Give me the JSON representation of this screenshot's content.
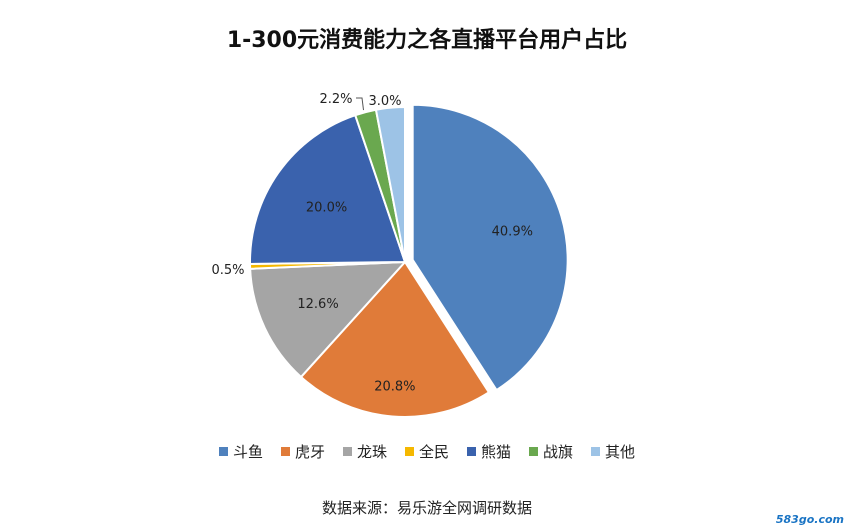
{
  "chart_data": {
    "type": "pie",
    "title": "1-300元消费能力之各直播平台用户占比",
    "categories": [
      "斗鱼",
      "虎牙",
      "龙珠",
      "全民",
      "熊猫",
      "战旗",
      "其他"
    ],
    "values": [
      40.9,
      20.8,
      12.6,
      0.5,
      20.0,
      2.2,
      3.0
    ],
    "labels": [
      "40.9%",
      "20.8%",
      "12.6%",
      "0.5%",
      "20.0%",
      "2.2%",
      "3.0%"
    ],
    "colors": [
      "#4f81bd",
      "#e07b39",
      "#a5a5a5",
      "#f5b800",
      "#3a62ad",
      "#6aa84f",
      "#9dc3e6"
    ],
    "exploded": "斗鱼",
    "legend_position": "bottom"
  },
  "source": "数据来源：易乐游全网调研数据",
  "watermark": "583go.com"
}
